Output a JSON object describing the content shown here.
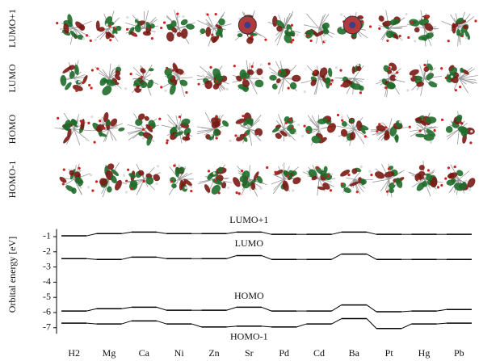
{
  "chart_data": {
    "type": "levels",
    "ylabel": "Orbital energy [eV]",
    "categories": [
      "H2",
      "Mg",
      "Ca",
      "Ni",
      "Zn",
      "Sr",
      "Pd",
      "Cd",
      "Ba",
      "Pt",
      "Hg",
      "Pb"
    ],
    "ylim": [
      -7.4,
      -0.5
    ],
    "yticks": [
      -1,
      -2,
      -3,
      -4,
      -5,
      -6,
      -7
    ],
    "color": "#000000",
    "series": [
      {
        "name": "LUMO+1",
        "values": [
          -0.95,
          -0.8,
          -0.7,
          -0.8,
          -0.8,
          -0.7,
          -0.85,
          -0.85,
          -0.7,
          -0.85,
          -0.85,
          -0.85
        ]
      },
      {
        "name": "LUMO",
        "values": [
          -2.45,
          -2.5,
          -2.35,
          -2.45,
          -2.45,
          -2.25,
          -2.5,
          -2.5,
          -2.15,
          -2.5,
          -2.5,
          -2.5
        ]
      },
      {
        "name": "HOMO",
        "values": [
          -5.9,
          -5.75,
          -5.65,
          -5.85,
          -5.85,
          -5.65,
          -5.9,
          -5.9,
          -5.5,
          -5.95,
          -5.9,
          -5.8
        ]
      },
      {
        "name": "HOMO-1",
        "values": [
          -6.7,
          -6.75,
          -6.55,
          -6.75,
          -6.95,
          -6.9,
          -6.95,
          -6.75,
          -6.4,
          -7.05,
          -6.75,
          -6.7
        ]
      }
    ]
  }
}
